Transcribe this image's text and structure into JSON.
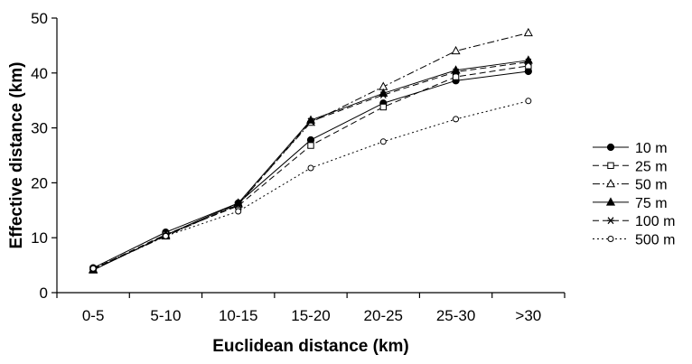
{
  "chart_data": {
    "type": "line",
    "title": "",
    "xlabel": "Euclidean distance (km)",
    "ylabel": "Effective distance (km)",
    "categories": [
      "0-5",
      "5-10",
      "10-15",
      "15-20",
      "20-25",
      "25-30",
      ">30"
    ],
    "ylim": [
      0,
      50
    ],
    "yticks": [
      "0",
      "10",
      "20",
      "30",
      "40",
      "50"
    ],
    "grid": false,
    "legend_position": "right",
    "series": [
      {
        "name": "10 m",
        "dash": "solid",
        "marker": "filled-circle",
        "values": [
          4.5,
          11.0,
          16.3,
          27.8,
          34.5,
          38.6,
          40.3
        ]
      },
      {
        "name": "25 m",
        "dash": "dashed",
        "marker": "open-square",
        "values": [
          4.3,
          10.6,
          15.8,
          26.8,
          33.8,
          39.3,
          41.3
        ]
      },
      {
        "name": "50 m",
        "dash": "dashdot",
        "marker": "open-triangle",
        "values": [
          4.2,
          10.3,
          16.1,
          31.0,
          37.5,
          44.0,
          47.3
        ]
      },
      {
        "name": "75 m",
        "dash": "solid",
        "marker": "filled-triangle",
        "values": [
          4.1,
          10.5,
          16.3,
          31.4,
          36.3,
          40.5,
          42.3
        ]
      },
      {
        "name": "100 m",
        "dash": "dashed",
        "marker": "asterisk",
        "values": [
          4.2,
          10.4,
          16.0,
          31.2,
          36.0,
          40.2,
          42.0
        ]
      },
      {
        "name": "500 m",
        "dash": "dotted",
        "marker": "open-circle",
        "values": [
          4.4,
          10.3,
          14.8,
          22.7,
          27.5,
          31.6,
          34.9
        ]
      }
    ]
  }
}
